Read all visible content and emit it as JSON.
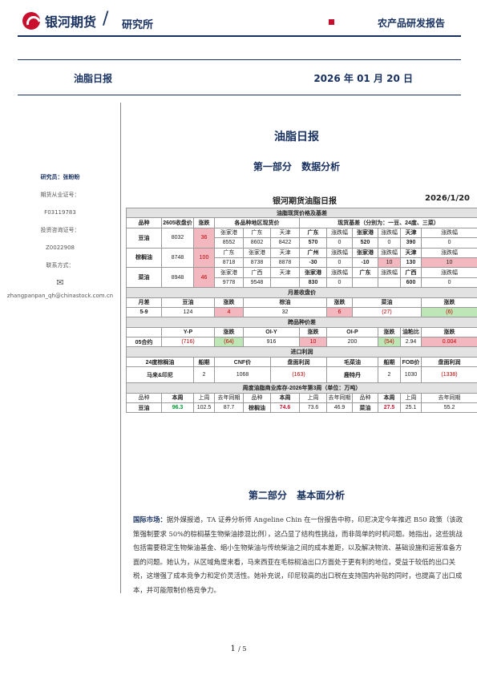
{
  "header": {
    "brand": "银河期货",
    "slash": "/",
    "dept": "研究所",
    "report_type": "农产品研发报告"
  },
  "band": {
    "title": "油脂日报",
    "date": "2026 年 01 月 20 日"
  },
  "sidebar": {
    "researcher": "研究员：张盼盼",
    "cert_label": "期货从业证号：",
    "cert_no": "F03119783",
    "invest_label": "投资咨询证号：",
    "invest_no": "Z0022908",
    "contact_label": "联系方式：",
    "email": "zhangpanpan_qh@chinastock.com.cn"
  },
  "doc_title": "油脂日报",
  "section1": "第一部分 数据分析",
  "table": {
    "title": "银河期货油脂日报",
    "date": "2026/1/20",
    "s1": "油脂现货价格及基差",
    "s1_head": [
      "品种",
      "2605收盘价",
      "涨跌",
      "各品种地区现货价",
      "现货基差（分别为：一豆、24度、三菜）"
    ],
    "soy": {
      "name": "豆油",
      "close": "8032",
      "chg": "36",
      "r1": [
        "张家港",
        "广东",
        "天津",
        "广东",
        "涨跌幅",
        "张家港",
        "涨跌幅",
        "天津",
        "涨跌幅"
      ],
      "r2": [
        "8552",
        "8602",
        "8422",
        "570",
        "0",
        "520",
        "0",
        "390",
        "0"
      ]
    },
    "palm": {
      "name": "棕榈油",
      "close": "8748",
      "chg": "100",
      "r1": [
        "广东",
        "张家港",
        "天津",
        "广州",
        "涨跌幅",
        "张家港",
        "涨跌幅",
        "天津",
        "涨跌幅"
      ],
      "r2": [
        "8718",
        "8738",
        "8878",
        "-30",
        "0",
        "-10",
        "10",
        "130",
        "10"
      ]
    },
    "rape": {
      "name": "菜油",
      "close": "8948",
      "chg": "46",
      "r1": [
        "张家港",
        "广西",
        "天津",
        "张家港",
        "涨跌幅",
        "广东",
        "涨跌幅",
        "广西",
        "涨跌幅"
      ],
      "r2": [
        "9778",
        "9548",
        "",
        "830",
        "0",
        "",
        "",
        "600",
        "0"
      ]
    },
    "s2": "月差收盘价",
    "s2_head": [
      "月差",
      "豆油",
      "涨跌",
      "棕油",
      "涨跌",
      "菜油",
      "涨跌"
    ],
    "s2_row": [
      "5-9",
      "124",
      "4",
      "32",
      "6",
      "(27)",
      "(6)"
    ],
    "s3": "跨品种价差",
    "s3_head": [
      "",
      "Y-P",
      "涨跌",
      "OI-Y",
      "涨跌",
      "OI-P",
      "涨跌",
      "油粕比",
      "涨跌"
    ],
    "s3_row": [
      "05合约",
      "(716)",
      "(64)",
      "916",
      "10",
      "200",
      "(54)",
      "2.94",
      "0.004"
    ],
    "s4": "进口利润",
    "s4_head": [
      "24度棕榈油",
      "船期",
      "CNF价",
      "盘面利润",
      "毛菜油",
      "船期",
      "FOB价",
      "盘面利润"
    ],
    "s4_row": [
      "马来&印尼",
      "2",
      "1068",
      "(163)",
      "鹿特丹",
      "2",
      "1030",
      "(1338)"
    ],
    "s5": "周度油脂商业库存-2026年第3周（单位：万吨）",
    "s5_head": [
      "品种",
      "本周",
      "上周",
      "去年同期",
      "品种",
      "本周",
      "上周",
      "去年同期",
      "品种",
      "本周",
      "上周",
      "去年同期"
    ],
    "s5_row": [
      "豆油",
      "96.3",
      "102.5",
      "87.7",
      "棕榈油",
      "74.6",
      "73.6",
      "46.9",
      "菜油",
      "27.5",
      "25.1",
      "55.2"
    ]
  },
  "section2": "第二部分 基本面分析",
  "para": {
    "lead": "国际市场：",
    "text": "据外媒报道，TA 证券分析师 Angeline Chin 在一份报告中称，印尼决定今年推迟 B50 政策（该政策强制要求 50%的棕榈基生物柴油掺混比例），这凸显了结构性挑战，而非简单的时机问题。她指出，这些挑战包括需要稳定生物柴油基金、缩小生物柴油与传统柴油之间的成本差距，以及解决物流、基础设施和运营准备方面的问题。她认为，从区域角度来看，马来西亚在毛棕榈油出口方面处于更有利的地位，受益于较低的出口关税，这增强了成本竞争力和定价灵活性。她补充说，印尼较高的出口税在支持国内补贴的同时，也提高了出口成本，并可能限制价格竞争力。"
  },
  "pager": {
    "current": "1",
    "sep": "/ ",
    "total": "5"
  }
}
